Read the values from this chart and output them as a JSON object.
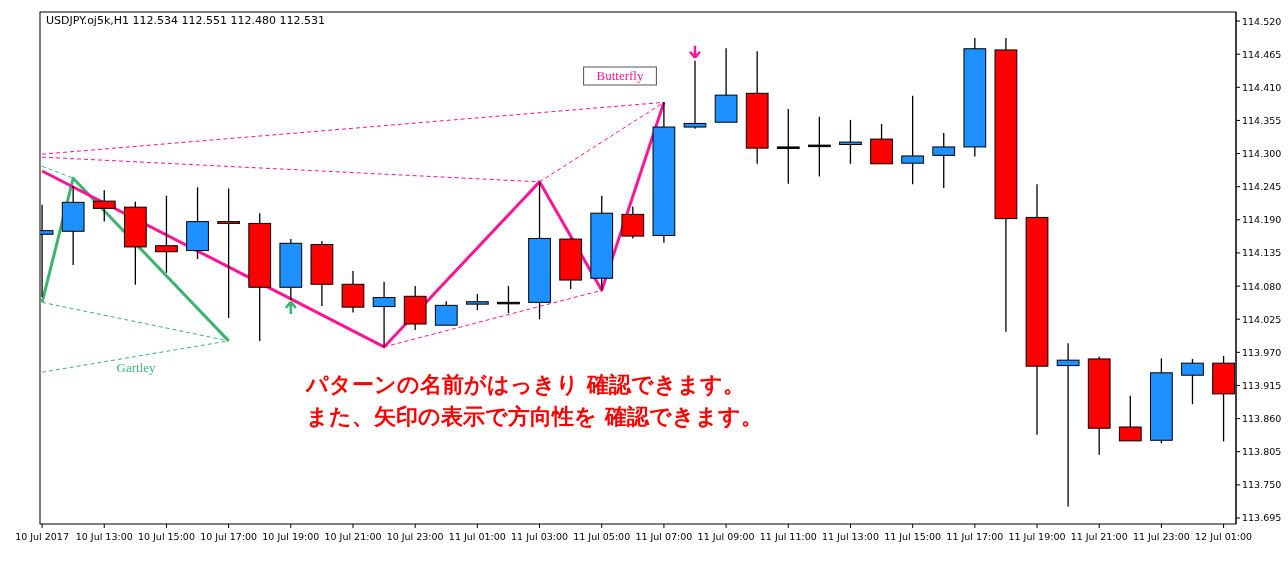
{
  "chart_data": {
    "type": "candlestick",
    "title": "USDJPY.oj5k,H1  112.534 112.551 112.480 112.531",
    "x": [
      "2017-07-10T11:00",
      "2017-07-10T12:00",
      "2017-07-10T13:00",
      "2017-07-10T14:00",
      "2017-07-10T15:00",
      "2017-07-10T16:00",
      "2017-07-10T17:00",
      "2017-07-10T18:00",
      "2017-07-10T19:00",
      "2017-07-10T20:00",
      "2017-07-10T21:00",
      "2017-07-10T22:00",
      "2017-07-10T23:00",
      "2017-07-11T00:00",
      "2017-07-11T01:00",
      "2017-07-11T02:00",
      "2017-07-11T03:00",
      "2017-07-11T04:00",
      "2017-07-11T05:00",
      "2017-07-11T06:00",
      "2017-07-11T07:00",
      "2017-07-11T08:00",
      "2017-07-11T09:00",
      "2017-07-11T10:00",
      "2017-07-11T11:00",
      "2017-07-11T12:00",
      "2017-07-11T13:00",
      "2017-07-11T14:00",
      "2017-07-11T15:00",
      "2017-07-11T16:00",
      "2017-07-11T17:00",
      "2017-07-11T18:00",
      "2017-07-11T19:00",
      "2017-07-11T20:00",
      "2017-07-11T21:00",
      "2017-07-11T22:00",
      "2017-07-11T23:00",
      "2017-07-12T00:00",
      "2017-07-12T01:00"
    ],
    "ohlc": [
      [
        114.166,
        114.215,
        114.062,
        114.172
      ],
      [
        114.171,
        114.246,
        114.115,
        114.219
      ],
      [
        114.221,
        114.239,
        114.187,
        114.209
      ],
      [
        114.211,
        114.22,
        114.082,
        114.145
      ],
      [
        114.147,
        114.23,
        114.102,
        114.137
      ],
      [
        114.139,
        114.244,
        114.125,
        114.187
      ],
      [
        114.187,
        114.242,
        114.027,
        114.184
      ],
      [
        114.184,
        114.201,
        113.989,
        114.078
      ],
      [
        114.078,
        114.158,
        114.057,
        114.151
      ],
      [
        114.149,
        114.155,
        114.047,
        114.083
      ],
      [
        114.083,
        114.105,
        114.036,
        114.045
      ],
      [
        114.046,
        114.087,
        113.979,
        114.061
      ],
      [
        114.063,
        114.08,
        114.007,
        114.017
      ],
      [
        114.015,
        114.055,
        114.015,
        114.048
      ],
      [
        114.05,
        114.067,
        114.04,
        114.054
      ],
      [
        114.053,
        114.08,
        114.035,
        114.053
      ],
      [
        114.053,
        114.253,
        114.025,
        114.159
      ],
      [
        114.158,
        114.16,
        114.075,
        114.09
      ],
      [
        114.093,
        114.23,
        114.073,
        114.201
      ],
      [
        114.199,
        114.212,
        114.159,
        114.163
      ],
      [
        114.164,
        114.385,
        114.152,
        114.344
      ],
      [
        114.344,
        114.454,
        114.341,
        114.35
      ],
      [
        114.352,
        114.475,
        114.352,
        114.397
      ],
      [
        114.4,
        114.47,
        114.283,
        114.309
      ],
      [
        114.311,
        114.374,
        114.25,
        114.311
      ],
      [
        114.314,
        114.361,
        114.262,
        114.314
      ],
      [
        114.315,
        114.356,
        114.283,
        114.319
      ],
      [
        114.324,
        114.349,
        114.283,
        114.283
      ],
      [
        114.284,
        114.396,
        114.249,
        114.296
      ],
      [
        114.297,
        114.334,
        114.243,
        114.311
      ],
      [
        114.311,
        114.492,
        114.295,
        114.474
      ],
      [
        114.472,
        114.492,
        114.004,
        114.192
      ],
      [
        114.194,
        114.249,
        113.833,
        113.947
      ],
      [
        113.948,
        113.985,
        113.714,
        113.957
      ],
      [
        113.959,
        113.963,
        113.8,
        113.844
      ],
      [
        113.846,
        113.898,
        113.823,
        113.823
      ],
      [
        113.824,
        113.96,
        113.819,
        113.936
      ],
      [
        113.932,
        113.959,
        113.884,
        113.952
      ],
      [
        113.952,
        113.964,
        113.822,
        113.901
      ]
    ],
    "colors": [
      "#1e90ff",
      "#1e90ff",
      "#ff0000",
      "#ff0000",
      "#ff0000",
      "#1e90ff",
      "#ff0000",
      "#ff0000",
      "#1e90ff",
      "#ff0000",
      "#ff0000",
      "#1e90ff",
      "#ff0000",
      "#1e90ff",
      "#1e90ff",
      "#000000",
      "#1e90ff",
      "#ff0000",
      "#1e90ff",
      "#ff0000",
      "#1e90ff",
      "#1e90ff",
      "#1e90ff",
      "#ff0000",
      "#000000",
      "#000000",
      "#1e90ff",
      "#ff0000",
      "#1e90ff",
      "#1e90ff",
      "#1e90ff",
      "#ff0000",
      "#ff0000",
      "#1e90ff",
      "#ff0000",
      "#ff0000",
      "#1e90ff",
      "#1e90ff",
      "#ff0000"
    ],
    "series": [
      {
        "type": "line",
        "color": "#3cb371",
        "line_style": "dashed",
        "x": [
          "2017-07-10T11:00",
          "2017-07-10T12:00"
        ],
        "values": [
          114.279,
          114.259
        ]
      },
      {
        "type": "line",
        "color": "#3cb371",
        "line_style": "dashed",
        "x": [
          "2017-07-10T11:00",
          "2017-07-10T17:00"
        ],
        "values": [
          114.053,
          113.989
        ]
      },
      {
        "type": "line",
        "color": "#3cb371",
        "line_style": "dashed",
        "x": [
          "2017-07-10T11:00",
          "2017-07-10T17:00"
        ],
        "values": [
          113.937,
          113.989
        ]
      },
      {
        "type": "line",
        "color": "#ff1493",
        "line_style": "dashed",
        "x": [
          "2017-07-10T11:00",
          "2017-07-11T07:00"
        ],
        "values": [
          114.299,
          114.385
        ]
      },
      {
        "type": "line",
        "color": "#ff1493",
        "line_style": "dashed",
        "x": [
          "2017-07-10T11:00",
          "2017-07-11T03:00"
        ],
        "values": [
          114.294,
          114.253
        ]
      },
      {
        "type": "line",
        "color": "#ff1493",
        "line_style": "dashed",
        "x": [
          "2017-07-10T22:00",
          "2017-07-11T05:00"
        ],
        "values": [
          113.979,
          114.073
        ]
      },
      {
        "type": "line",
        "color": "#ff1493",
        "line_style": "dashed",
        "x": [
          "2017-07-11T03:00",
          "2017-07-11T07:00"
        ],
        "values": [
          114.253,
          114.385
        ]
      },
      {
        "type": "line",
        "color": "#3cb371",
        "line_style": "solid",
        "x": [
          "2017-07-10T11:00",
          "2017-07-10T12:00",
          "2017-07-10T17:00"
        ],
        "values": [
          114.053,
          114.259,
          113.989
        ]
      },
      {
        "type": "line",
        "color": "#ff1493",
        "line_style": "solid",
        "x": [
          "2017-07-10T11:00",
          "2017-07-10T22:00",
          "2017-07-11T03:00",
          "2017-07-11T05:00",
          "2017-07-11T07:00"
        ],
        "values": [
          114.271,
          113.979,
          114.253,
          114.073,
          114.385
        ]
      }
    ],
    "xlim": [
      "2017-07-10T10:56",
      "2017-07-12T01:24"
    ],
    "xticks": [
      {
        "value": "2017-07-10T11:00",
        "label": "10 Jul 2017"
      },
      {
        "value": "2017-07-10T13:00",
        "label": "10 Jul 13:00"
      },
      {
        "value": "2017-07-10T15:00",
        "label": "10 Jul 15:00"
      },
      {
        "value": "2017-07-10T17:00",
        "label": "10 Jul 17:00"
      },
      {
        "value": "2017-07-10T19:00",
        "label": "10 Jul 19:00"
      },
      {
        "value": "2017-07-10T21:00",
        "label": "10 Jul 21:00"
      },
      {
        "value": "2017-07-10T23:00",
        "label": "10 Jul 23:00"
      },
      {
        "value": "2017-07-11T01:00",
        "label": "11 Jul 01:00"
      },
      {
        "value": "2017-07-11T03:00",
        "label": "11 Jul 03:00"
      },
      {
        "value": "2017-07-11T05:00",
        "label": "11 Jul 05:00"
      },
      {
        "value": "2017-07-11T07:00",
        "label": "11 Jul 07:00"
      },
      {
        "value": "2017-07-11T09:00",
        "label": "11 Jul 09:00"
      },
      {
        "value": "2017-07-11T11:00",
        "label": "11 Jul 11:00"
      },
      {
        "value": "2017-07-11T13:00",
        "label": "11 Jul 13:00"
      },
      {
        "value": "2017-07-11T15:00",
        "label": "11 Jul 15:00"
      },
      {
        "value": "2017-07-11T17:00",
        "label": "11 Jul 17:00"
      },
      {
        "value": "2017-07-11T19:00",
        "label": "11 Jul 19:00"
      },
      {
        "value": "2017-07-11T21:00",
        "label": "11 Jul 21:00"
      },
      {
        "value": "2017-07-11T23:00",
        "label": "11 Jul 23:00"
      },
      {
        "value": "2017-07-12T01:00",
        "label": "12 Jul 01:00"
      }
    ],
    "ylim": [
      113.685,
      114.535
    ],
    "yticks": [
      {
        "value": 113.695,
        "label": "113.695"
      },
      {
        "value": 113.75,
        "label": "113.750"
      },
      {
        "value": 113.805,
        "label": "113.805"
      },
      {
        "value": 113.86,
        "label": "113.860"
      },
      {
        "value": 113.915,
        "label": "113.915"
      },
      {
        "value": 113.97,
        "label": "113.970"
      },
      {
        "value": 114.025,
        "label": "114.025"
      },
      {
        "value": 114.08,
        "label": "114.080"
      },
      {
        "value": 114.135,
        "label": "114.135"
      },
      {
        "value": 114.19,
        "label": "114.190"
      },
      {
        "value": 114.245,
        "label": "114.245"
      },
      {
        "value": 114.3,
        "label": "114.300"
      },
      {
        "value": 114.355,
        "label": "114.355"
      },
      {
        "value": 114.41,
        "label": "114.410"
      },
      {
        "value": 114.465,
        "label": "114.465"
      },
      {
        "value": 114.52,
        "label": "114.520"
      }
    ],
    "annotations": [
      "Gartley",
      "Butterfly",
      "パターンの名前がはっきり 確認できます。",
      "また、矢印の表示で方向性を 確認できます。"
    ]
  }
}
